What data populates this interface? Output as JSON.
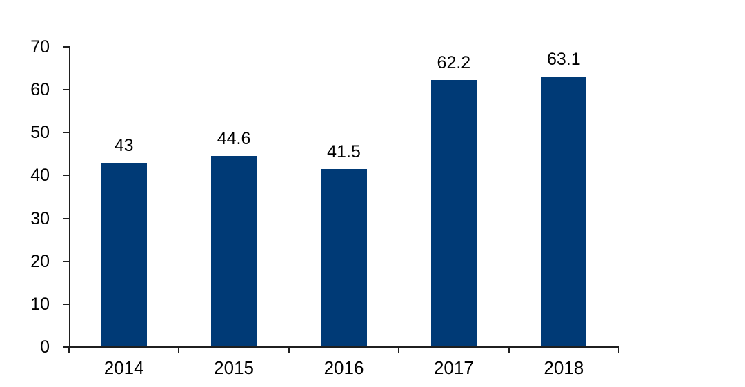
{
  "chart_data": {
    "type": "bar",
    "categories": [
      "2014",
      "2015",
      "2016",
      "2017",
      "2018"
    ],
    "values": [
      43,
      44.6,
      41.5,
      62.2,
      63.1
    ],
    "value_labels": [
      "43",
      "44.6",
      "41.5",
      "62.2",
      "63.1"
    ],
    "series_name": "",
    "title": "",
    "xlabel": "",
    "ylabel": "",
    "ylim": [
      0,
      70
    ],
    "yticks": [
      0,
      10,
      20,
      30,
      40,
      50,
      60,
      70
    ],
    "grid": false,
    "legend_position": "none",
    "bar_color": "#003a76",
    "axis_color": "#1f1f1f",
    "text_color": "#000000",
    "background_color": "#ffffff"
  }
}
